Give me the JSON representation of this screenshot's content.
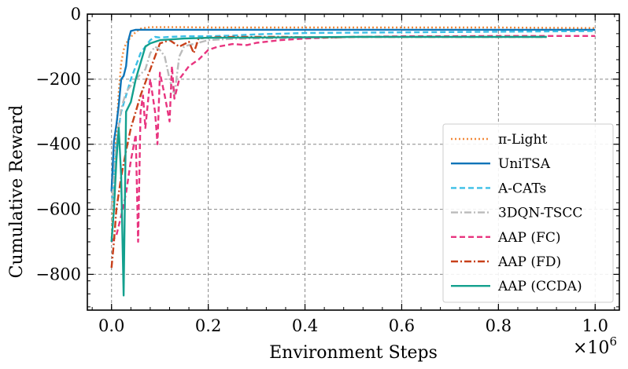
{
  "chart_data": {
    "type": "line",
    "title": "",
    "xlabel": "Environment Steps",
    "ylabel": "Cumulative Reward",
    "x_multiplier_label": "×10",
    "x_multiplier_exp": "6",
    "xlim": [
      -0.05,
      1.05
    ],
    "ylim": [
      -910,
      0
    ],
    "xticks": [
      0.0,
      0.2,
      0.4,
      0.6,
      0.8,
      1.0
    ],
    "xtick_labels": [
      "0.0",
      "0.2",
      "0.4",
      "0.6",
      "0.8",
      "1.0"
    ],
    "yticks": [
      0,
      -200,
      -400,
      -600,
      -800
    ],
    "ytick_labels": [
      "0",
      "−200",
      "−400",
      "−600",
      "−800"
    ],
    "grid": true,
    "legend_position": "bottom-right",
    "series": [
      {
        "name": "π-Light",
        "color": "#f28a3c",
        "style": "dotted",
        "x": [
          0,
          0.005,
          0.01,
          0.015,
          0.02,
          0.025,
          0.03,
          0.04,
          0.05,
          0.06,
          0.07,
          0.08,
          0.1,
          0.15,
          0.2,
          0.3,
          0.4,
          0.5,
          0.6,
          0.7,
          0.8,
          0.9,
          1.0
        ],
        "y": [
          -700,
          -530,
          -360,
          -240,
          -150,
          -110,
          -90,
          -70,
          -55,
          -45,
          -42,
          -40,
          -40,
          -40,
          -41,
          -41,
          -41,
          -41,
          -41,
          -41,
          -41,
          -42,
          -43
        ]
      },
      {
        "name": "UniTSA",
        "color": "#0f74b8",
        "style": "solid",
        "x": [
          0,
          0.005,
          0.01,
          0.015,
          0.02,
          0.025,
          0.03,
          0.035,
          0.04,
          0.05,
          0.07,
          0.1,
          0.2,
          0.4,
          0.6,
          0.8,
          1.0
        ],
        "y": [
          -545,
          -390,
          -340,
          -280,
          -200,
          -190,
          -160,
          -80,
          -52,
          -48,
          -48,
          -48,
          -48,
          -48,
          -48,
          -48,
          -48
        ]
      },
      {
        "name": "A-CATs",
        "color": "#3cbfe6",
        "style": "dashed",
        "x": [
          0,
          0.01,
          0.02,
          0.03,
          0.04,
          0.05,
          0.06,
          0.07,
          0.08,
          0.09,
          0.1,
          0.12,
          0.15,
          0.2,
          0.25,
          0.3,
          0.35,
          0.4,
          0.5,
          0.6,
          0.7,
          0.8,
          0.9,
          1.0
        ],
        "y": [
          -600,
          -400,
          -300,
          -250,
          -200,
          -160,
          -120,
          -100,
          -80,
          -70,
          -72,
          -70,
          -68,
          -68,
          -66,
          -62,
          -60,
          -58,
          -57,
          -56,
          -55,
          -54,
          -53,
          -52
        ]
      },
      {
        "name": "3DQN-TSCC",
        "color": "#bbbbbb",
        "style": "dashdot",
        "x": [
          0,
          0.01,
          0.02,
          0.03,
          0.04,
          0.05,
          0.06,
          0.07,
          0.08,
          0.09,
          0.1,
          0.11,
          0.12,
          0.13,
          0.14,
          0.15,
          0.16,
          0.18,
          0.2,
          0.25,
          0.3,
          0.35,
          0.4
        ],
        "y": [
          -600,
          -400,
          -290,
          -240,
          -220,
          -200,
          -185,
          -170,
          -120,
          -100,
          -110,
          -130,
          -200,
          -250,
          -130,
          -100,
          -95,
          -88,
          -80,
          -76,
          -75,
          -74,
          -73
        ]
      },
      {
        "name": "AAP (FC)",
        "color": "#e8347f",
        "style": "dashed",
        "x": [
          0,
          0.01,
          0.02,
          0.03,
          0.04,
          0.05,
          0.055,
          0.06,
          0.065,
          0.07,
          0.08,
          0.09,
          0.095,
          0.1,
          0.11,
          0.12,
          0.125,
          0.13,
          0.14,
          0.15,
          0.16,
          0.18,
          0.2,
          0.22,
          0.25,
          0.28,
          0.3,
          0.35,
          0.4,
          0.45,
          0.5,
          0.6,
          0.7,
          0.8,
          0.9,
          1.0
        ],
        "y": [
          -700,
          -680,
          -620,
          -550,
          -450,
          -370,
          -700,
          -300,
          -250,
          -350,
          -200,
          -300,
          -400,
          -180,
          -250,
          -330,
          -160,
          -260,
          -200,
          -180,
          -160,
          -140,
          -110,
          -100,
          -92,
          -95,
          -88,
          -80,
          -75,
          -72,
          -70,
          -68,
          -68,
          -67,
          -67,
          -67
        ]
      },
      {
        "name": "AAP (FD)",
        "color": "#c8401a",
        "style": "dashdot",
        "x": [
          0,
          0.005,
          0.01,
          0.02,
          0.03,
          0.04,
          0.05,
          0.06,
          0.07,
          0.08,
          0.09,
          0.1,
          0.12,
          0.14,
          0.16,
          0.17,
          0.18,
          0.2,
          0.25,
          0.3,
          0.35,
          0.4,
          0.45,
          0.5,
          0.55,
          0.6,
          0.7,
          0.8,
          0.9
        ],
        "y": [
          -780,
          -700,
          -600,
          -500,
          -420,
          -350,
          -300,
          -250,
          -210,
          -170,
          -130,
          -90,
          -80,
          -100,
          -85,
          -120,
          -75,
          -72,
          -70,
          -70,
          -70,
          -71,
          -72,
          -70,
          -70,
          -70,
          -70,
          -70,
          -70
        ]
      },
      {
        "name": "AAP (CCDA)",
        "color": "#13a08e",
        "style": "solid",
        "x": [
          0,
          0.005,
          0.01,
          0.015,
          0.02,
          0.025,
          0.03,
          0.04,
          0.05,
          0.06,
          0.07,
          0.08,
          0.1,
          0.12,
          0.15,
          0.2,
          0.3,
          0.4,
          0.5,
          0.6,
          0.7,
          0.8,
          0.9
        ],
        "y": [
          -700,
          -600,
          -450,
          -350,
          -500,
          -865,
          -300,
          -270,
          -200,
          -150,
          -100,
          -90,
          -80,
          -78,
          -75,
          -73,
          -72,
          -71,
          -70,
          -70,
          -70,
          -70,
          -70
        ]
      }
    ]
  }
}
